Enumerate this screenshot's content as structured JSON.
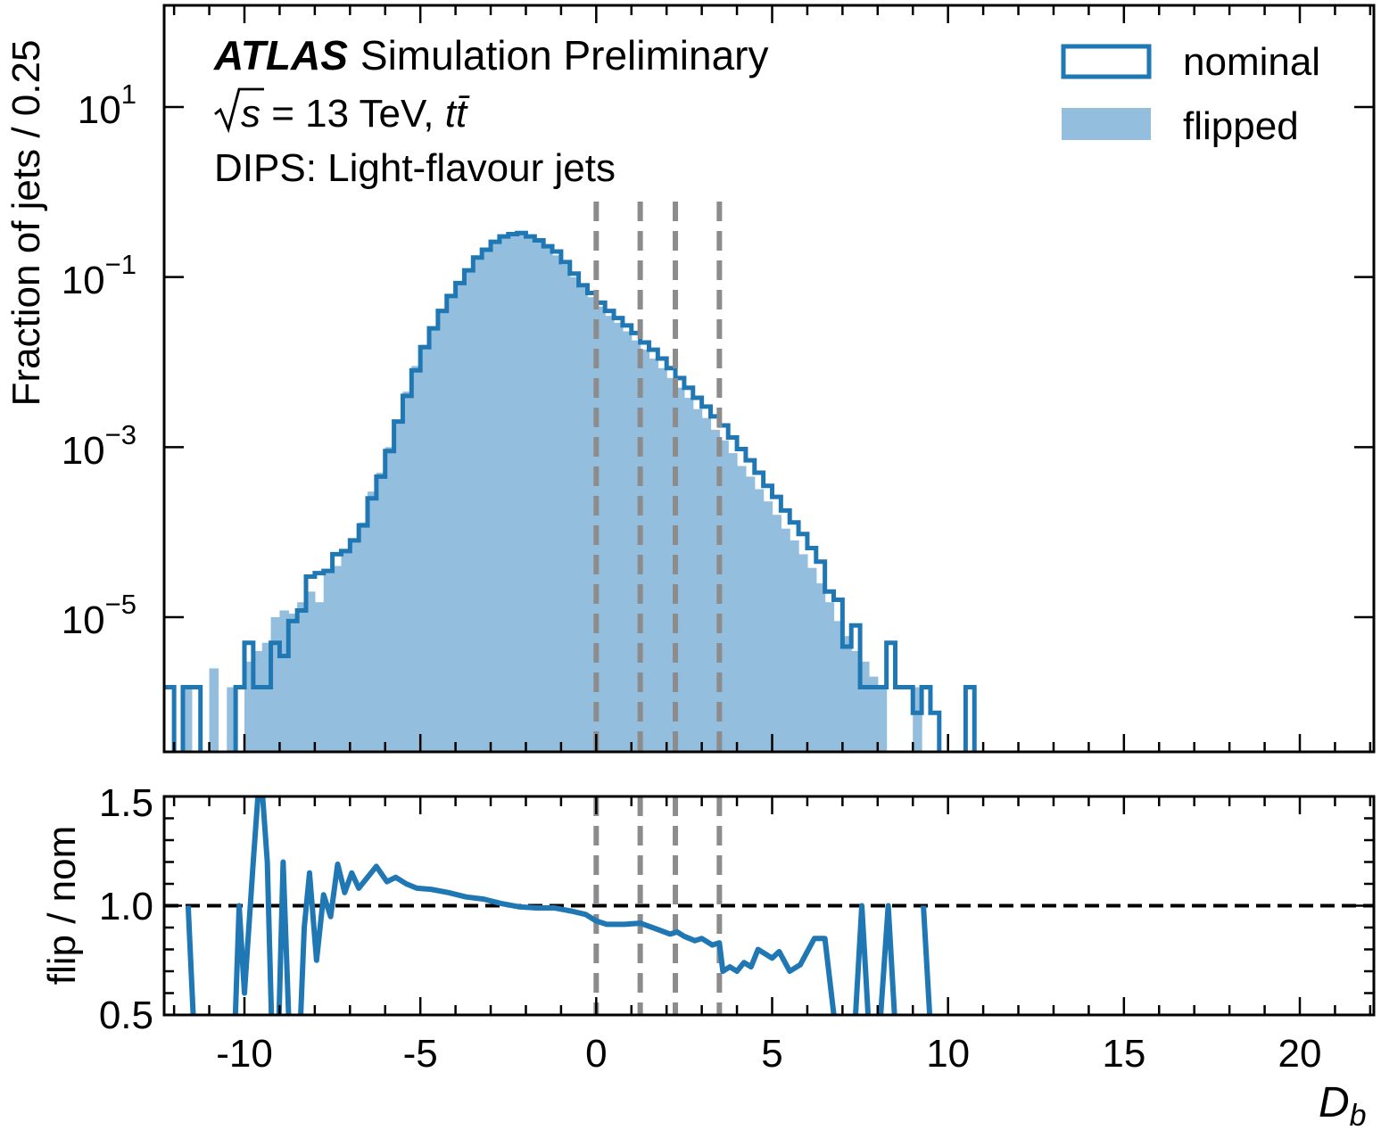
{
  "chart_data": [
    {
      "type": "histogram",
      "panel": "main",
      "ylabel": "Fraction of jets / 0.25",
      "yscale": "log",
      "ylim": [
        3e-07,
        300
      ],
      "xlim": [
        -12.5,
        22.5
      ],
      "bin_width": 0.25,
      "ytick_labels": [
        {
          "base": "10",
          "exp": "1"
        },
        {
          "base": "10",
          "exp": "−1"
        },
        {
          "base": "10",
          "exp": "−3"
        },
        {
          "base": "10",
          "exp": "−5"
        }
      ],
      "ytick_values": [
        10,
        0.1,
        0.001,
        1e-05
      ],
      "annotation": {
        "experiment": "ATLAS",
        "status": "Simulation Preliminary",
        "energy_prefix": "s",
        "energy_text": " = 13 TeV, ",
        "process_text": "tt̄",
        "tagger_text": "DIPS: Light-flavour jets"
      },
      "legend": {
        "position": "top-right",
        "nominal_label": "nominal",
        "flipped_label": "flipped"
      },
      "series": [
        {
          "name": "nominal",
          "style": "step",
          "color": "#1f77b4",
          "bins": [
            [
              -12.5,
              1.5e-06
            ],
            [
              -12.25,
              1.5e-06
            ],
            [
              -11.75,
              1.5e-06
            ],
            [
              -11.5,
              1.5e-06
            ],
            [
              -10.25,
              1.5e-06
            ],
            [
              -10.0,
              5e-06
            ],
            [
              -9.75,
              1.5e-06
            ],
            [
              -9.5,
              1.5e-06
            ],
            [
              -9.25,
              5e-06
            ],
            [
              -9.0,
              3.5e-06
            ],
            [
              -8.75,
              9e-06
            ],
            [
              -8.5,
              1.2e-05
            ],
            [
              -8.25,
              3e-05
            ],
            [
              -8.0,
              3.3e-05
            ],
            [
              -7.75,
              3.5e-05
            ],
            [
              -7.5,
              5.5e-05
            ],
            [
              -7.25,
              6e-05
            ],
            [
              -7.0,
              8e-05
            ],
            [
              -6.75,
              0.00012
            ],
            [
              -6.5,
              0.00025
            ],
            [
              -6.25,
              0.00045
            ],
            [
              -6.0,
              0.0009
            ],
            [
              -5.75,
              0.002
            ],
            [
              -5.5,
              0.004
            ],
            [
              -5.25,
              0.008
            ],
            [
              -5.0,
              0.015
            ],
            [
              -4.75,
              0.025
            ],
            [
              -4.5,
              0.04
            ],
            [
              -4.25,
              0.06
            ],
            [
              -4.0,
              0.085
            ],
            [
              -3.75,
              0.12
            ],
            [
              -3.5,
              0.17
            ],
            [
              -3.25,
              0.21
            ],
            [
              -3.0,
              0.26
            ],
            [
              -2.75,
              0.3
            ],
            [
              -2.5,
              0.32
            ],
            [
              -2.25,
              0.33
            ],
            [
              -2.0,
              0.3
            ],
            [
              -1.75,
              0.27
            ],
            [
              -1.5,
              0.23
            ],
            [
              -1.25,
              0.2
            ],
            [
              -1.0,
              0.15
            ],
            [
              -0.75,
              0.11
            ],
            [
              -0.5,
              0.08
            ],
            [
              -0.25,
              0.065
            ],
            [
              0.0,
              0.05
            ],
            [
              0.25,
              0.04
            ],
            [
              0.5,
              0.033
            ],
            [
              0.75,
              0.027
            ],
            [
              1.0,
              0.022
            ],
            [
              1.25,
              0.017
            ],
            [
              1.5,
              0.014
            ],
            [
              1.75,
              0.011
            ],
            [
              2.0,
              0.0085
            ],
            [
              2.25,
              0.0065
            ],
            [
              2.5,
              0.005
            ],
            [
              2.75,
              0.0038
            ],
            [
              3.0,
              0.003
            ],
            [
              3.25,
              0.0023
            ],
            [
              3.5,
              0.0018
            ],
            [
              3.75,
              0.0013
            ],
            [
              4.0,
              0.00095
            ],
            [
              4.25,
              0.0007
            ],
            [
              4.5,
              0.0005
            ],
            [
              4.75,
              0.00035
            ],
            [
              5.0,
              0.00026
            ],
            [
              5.25,
              0.00018
            ],
            [
              5.5,
              0.00013
            ],
            [
              5.75,
              9.5e-05
            ],
            [
              6.0,
              6.5e-05
            ],
            [
              6.25,
              4.5e-05
            ],
            [
              6.5,
              2e-05
            ],
            [
              6.75,
              1.6e-05
            ],
            [
              7.0,
              4.5e-06
            ],
            [
              7.25,
              8e-06
            ],
            [
              7.5,
              1.5e-06
            ],
            [
              7.75,
              1.5e-06
            ],
            [
              8.0,
              1.5e-06
            ],
            [
              8.25,
              5e-06
            ],
            [
              8.5,
              1.5e-06
            ],
            [
              8.75,
              1.5e-06
            ],
            [
              9.0,
              7.5e-07
            ],
            [
              9.25,
              1.5e-06
            ],
            [
              9.5,
              7.5e-07
            ],
            [
              10.5,
              1.5e-06
            ]
          ]
        },
        {
          "name": "flipped",
          "style": "filled",
          "color": "#94bedd",
          "bins": [
            [
              -11.75,
              1.5e-06
            ],
            [
              -11.0,
              2.5e-06
            ],
            [
              -10.5,
              1.5e-06
            ],
            [
              -10.0,
              3e-06
            ],
            [
              -9.75,
              4e-06
            ],
            [
              -9.5,
              5e-06
            ],
            [
              -9.25,
              1e-05
            ],
            [
              -9.0,
              1.2e-05
            ],
            [
              -8.75,
              1.1e-05
            ],
            [
              -8.5,
              1.5e-05
            ],
            [
              -8.25,
              2e-05
            ],
            [
              -8.0,
              1.5e-05
            ],
            [
              -7.75,
              3.5e-05
            ],
            [
              -7.5,
              4e-05
            ],
            [
              -7.25,
              6e-05
            ],
            [
              -7.0,
              8e-05
            ],
            [
              -6.75,
              0.00013
            ],
            [
              -6.5,
              0.0003
            ],
            [
              -6.25,
              0.0005
            ],
            [
              -6.0,
              0.001
            ],
            [
              -5.75,
              0.002
            ],
            [
              -5.5,
              0.0045
            ],
            [
              -5.25,
              0.009
            ],
            [
              -5.0,
              0.016
            ],
            [
              -4.75,
              0.026
            ],
            [
              -4.5,
              0.042
            ],
            [
              -4.25,
              0.062
            ],
            [
              -4.0,
              0.088
            ],
            [
              -3.75,
              0.12
            ],
            [
              -3.5,
              0.17
            ],
            [
              -3.25,
              0.21
            ],
            [
              -3.0,
              0.26
            ],
            [
              -2.75,
              0.3
            ],
            [
              -2.5,
              0.32
            ],
            [
              -2.25,
              0.32
            ],
            [
              -2.0,
              0.29
            ],
            [
              -1.75,
              0.26
            ],
            [
              -1.5,
              0.22
            ],
            [
              -1.25,
              0.18
            ],
            [
              -1.0,
              0.14
            ],
            [
              -0.75,
              0.1
            ],
            [
              -0.5,
              0.075
            ],
            [
              -0.25,
              0.058
            ],
            [
              0.0,
              0.045
            ],
            [
              0.25,
              0.035
            ],
            [
              0.5,
              0.029
            ],
            [
              0.75,
              0.023
            ],
            [
              1.0,
              0.018
            ],
            [
              1.25,
              0.014
            ],
            [
              1.5,
              0.011
            ],
            [
              1.75,
              0.0085
            ],
            [
              2.0,
              0.0065
            ],
            [
              2.25,
              0.005
            ],
            [
              2.5,
              0.0038
            ],
            [
              2.75,
              0.0028
            ],
            [
              3.0,
              0.0022
            ],
            [
              3.25,
              0.0016
            ],
            [
              3.5,
              0.0012
            ],
            [
              3.75,
              0.00085
            ],
            [
              4.0,
              0.0006
            ],
            [
              4.25,
              0.00045
            ],
            [
              4.5,
              0.00032
            ],
            [
              4.75,
              0.00023
            ],
            [
              5.0,
              0.00016
            ],
            [
              5.25,
              0.00011
            ],
            [
              5.5,
              8e-05
            ],
            [
              5.75,
              5.5e-05
            ],
            [
              6.0,
              3.8e-05
            ],
            [
              6.25,
              2.5e-05
            ],
            [
              6.5,
              1.5e-05
            ],
            [
              6.75,
              9e-06
            ],
            [
              7.0,
              6e-06
            ],
            [
              7.25,
              4e-06
            ],
            [
              7.5,
              3e-06
            ],
            [
              7.75,
              2e-06
            ],
            [
              8.0,
              1.5e-06
            ],
            [
              9.0,
              1.5e-06
            ]
          ]
        }
      ]
    },
    {
      "type": "line",
      "panel": "ratio",
      "ylabel": "flip / nom",
      "xlabel": "D",
      "xlabel_subscript": "b",
      "xlim": [
        -12.5,
        22.5
      ],
      "ylim": [
        0.5,
        1.5
      ],
      "xticks": [
        -10,
        -5,
        0,
        5,
        10,
        15,
        20
      ],
      "xtick_labels": [
        "-10",
        "-5",
        "0",
        "5",
        "10",
        "15",
        "20"
      ],
      "yticks": [
        0.5,
        1.0,
        1.5
      ],
      "ytick_labels": [
        "0.5",
        "1.0",
        "1.5"
      ],
      "reference_line": 1.0,
      "color": "#1f77b4",
      "segments": [
        [
          [
            -11.6,
            1.0
          ],
          [
            -11.4,
            0.3
          ]
        ],
        [
          [
            -10.3,
            0.3
          ],
          [
            -10.15,
            1.0
          ],
          [
            -10.0,
            0.6
          ],
          [
            -9.75,
            1.2
          ],
          [
            -9.55,
            1.65
          ],
          [
            -9.35,
            1.2
          ],
          [
            -9.2,
            0.3
          ]
        ],
        [
          [
            -9.05,
            0.3
          ],
          [
            -8.9,
            1.2
          ],
          [
            -8.7,
            0.3
          ]
        ],
        [
          [
            -8.45,
            0.3
          ],
          [
            -8.3,
            0.9
          ],
          [
            -8.15,
            1.15
          ],
          [
            -7.95,
            0.75
          ],
          [
            -7.75,
            1.05
          ],
          [
            -7.55,
            0.95
          ],
          [
            -7.35,
            1.19
          ],
          [
            -7.15,
            1.06
          ],
          [
            -6.95,
            1.15
          ],
          [
            -6.75,
            1.08
          ],
          [
            -6.5,
            1.13
          ],
          [
            -6.25,
            1.18
          ],
          [
            -5.95,
            1.11
          ],
          [
            -5.7,
            1.13
          ],
          [
            -5.4,
            1.1
          ],
          [
            -5.1,
            1.08
          ],
          [
            -4.7,
            1.075
          ],
          [
            -4.2,
            1.06
          ],
          [
            -3.7,
            1.04
          ],
          [
            -3.2,
            1.03
          ],
          [
            -2.7,
            1.01
          ],
          [
            -2.2,
            0.995
          ],
          [
            -1.7,
            0.99
          ],
          [
            -1.2,
            0.99
          ],
          [
            -0.7,
            0.975
          ],
          [
            -0.3,
            0.96
          ],
          [
            0.0,
            0.93
          ],
          [
            0.3,
            0.915
          ],
          [
            0.8,
            0.915
          ],
          [
            1.25,
            0.92
          ],
          [
            1.6,
            0.9
          ],
          [
            2.1,
            0.87
          ],
          [
            2.3,
            0.88
          ],
          [
            2.5,
            0.86
          ],
          [
            2.8,
            0.84
          ],
          [
            3.0,
            0.85
          ],
          [
            3.3,
            0.82
          ],
          [
            3.5,
            0.83
          ],
          [
            3.6,
            0.7
          ],
          [
            3.8,
            0.72
          ],
          [
            4.0,
            0.7
          ],
          [
            4.2,
            0.74
          ],
          [
            4.4,
            0.72
          ],
          [
            4.6,
            0.8
          ],
          [
            4.8,
            0.78
          ],
          [
            5.0,
            0.76
          ],
          [
            5.2,
            0.79
          ],
          [
            5.5,
            0.7
          ],
          [
            5.8,
            0.73
          ],
          [
            6.2,
            0.85
          ],
          [
            6.5,
            0.85
          ],
          [
            6.9,
            0.3
          ]
        ],
        [
          [
            7.3,
            0.3
          ],
          [
            7.55,
            1.0
          ],
          [
            7.8,
            0.3
          ]
        ],
        [
          [
            8.0,
            0.3
          ],
          [
            8.3,
            1.0
          ],
          [
            8.55,
            0.3
          ]
        ],
        [
          [
            9.3,
            1.0
          ],
          [
            9.55,
            0.3
          ]
        ]
      ]
    }
  ],
  "vlines": [
    0.0,
    1.25,
    2.25,
    3.5
  ]
}
